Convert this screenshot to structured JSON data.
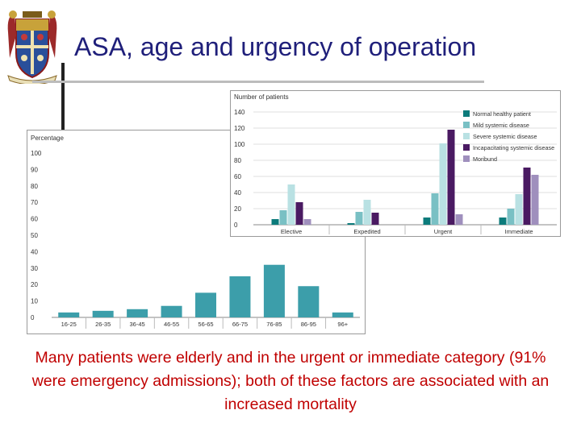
{
  "slide": {
    "title": "ASA, age and urgency of operation",
    "caption": "Many patients were elderly and in the urgent or immediate category (91% were emergency admissions); both of these factors are associated with an increased mortality"
  },
  "colors": {
    "teal_dark": "#0c7b7b",
    "teal_mid": "#79c0c4",
    "teal_light": "#b9e1e3",
    "purple_dark": "#4a1a62",
    "purple_light": "#9f8fbd",
    "age_bar": "#3c9eaa",
    "title_text": "#1f1f7a",
    "caption_text": "#c00000"
  },
  "chart_data": [
    {
      "type": "bar",
      "id": "age",
      "title": "",
      "xlabel": "",
      "ylabel": "Percentage",
      "ylim": [
        0,
        100
      ],
      "yticks": [
        0,
        10,
        20,
        30,
        40,
        50,
        60,
        70,
        80,
        90,
        100
      ],
      "categories": [
        "16-25",
        "26-35",
        "36-45",
        "46-55",
        "56-65",
        "66-75",
        "76-85",
        "86-95",
        "96+"
      ],
      "values": [
        3,
        4,
        5,
        7,
        15,
        25,
        32,
        19,
        3
      ],
      "grid": false,
      "legend": "none"
    },
    {
      "type": "bar",
      "id": "urgency",
      "title": "",
      "xlabel": "",
      "ylabel": "Number of patients",
      "ylim": [
        0,
        140
      ],
      "yticks": [
        0,
        20,
        40,
        60,
        80,
        100,
        120,
        140
      ],
      "categories": [
        "Elective",
        "Expedited",
        "Urgent",
        "Immediate"
      ],
      "series": [
        {
          "name": "Normal healthy patient",
          "values": [
            7,
            2,
            9,
            9
          ]
        },
        {
          "name": "Mild systemic disease",
          "values": [
            18,
            16,
            39,
            20
          ]
        },
        {
          "name": "Severe systemic disease",
          "values": [
            50,
            31,
            101,
            38
          ]
        },
        {
          "name": "Incapacitating systemic disease",
          "values": [
            28,
            15,
            118,
            71
          ]
        },
        {
          "name": "Moribund",
          "values": [
            7,
            0,
            13,
            62
          ]
        }
      ],
      "grid": true,
      "legend": "top-right"
    }
  ]
}
